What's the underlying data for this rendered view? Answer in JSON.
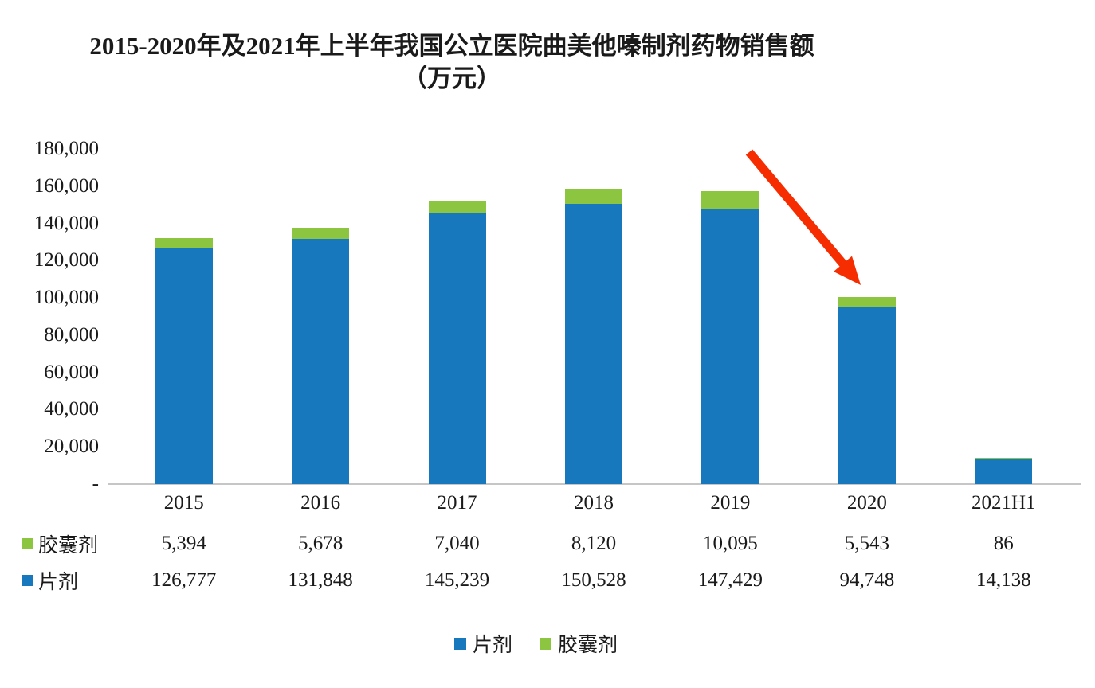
{
  "title": "2015-2020年及2021年上半年我国公立医院曲美他嗪制剂药物销售额（万元）",
  "chart_data": {
    "type": "bar",
    "stacked": true,
    "title": "2015-2020年及2021年上半年我国公立医院曲美他嗪制剂药物销售额（万元）",
    "categories": [
      "2015",
      "2016",
      "2017",
      "2018",
      "2019",
      "2020",
      "2021H1"
    ],
    "series": [
      {
        "name": "片剂",
        "color": "#1878be",
        "values": [
          126777,
          131848,
          145239,
          150528,
          147429,
          94748,
          14138
        ]
      },
      {
        "name": "胶囊剂",
        "color": "#8cc540",
        "values": [
          5394,
          5678,
          7040,
          8120,
          10095,
          5543,
          86
        ]
      }
    ],
    "ylim": [
      0,
      180000
    ],
    "ytick_step": 20000,
    "ytick_labels": [
      "180,000",
      "160,000",
      "140,000",
      "120,000",
      "100,000",
      "80,000",
      "60,000",
      "40,000",
      "20,000",
      "-"
    ],
    "grid": false,
    "legend_position": "bottom",
    "annotation": {
      "type": "red-arrow",
      "meaning": "points to 2020 decline",
      "color": "#f62d00"
    }
  },
  "table": {
    "rows": [
      {
        "label": "胶囊剂",
        "marker_color": "#8cc540",
        "values": [
          "5,394",
          "5,678",
          "7,040",
          "8,120",
          "10,095",
          "5,543",
          "86"
        ]
      },
      {
        "label": "片剂",
        "marker_color": "#1878be",
        "values": [
          "126,777",
          "131,848",
          "145,239",
          "150,528",
          "147,429",
          "94,748",
          "14,138"
        ]
      }
    ]
  },
  "legend": {
    "items": [
      {
        "label": "片剂",
        "color": "#1878be"
      },
      {
        "label": "胶囊剂",
        "color": "#8cc540"
      }
    ]
  }
}
